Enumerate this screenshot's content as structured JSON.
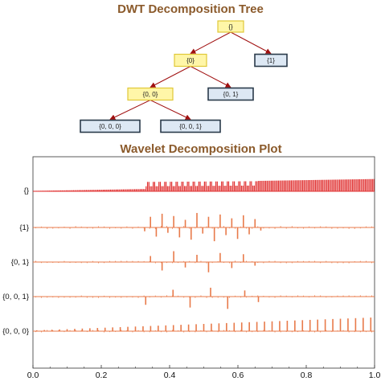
{
  "chart_data": [
    {
      "type": "tree",
      "title": "DWT Decomposition Tree",
      "nodes": [
        {
          "id": "root",
          "label": "{}",
          "leaf": false
        },
        {
          "id": "n0",
          "label": "{0}",
          "leaf": false
        },
        {
          "id": "n1",
          "label": "{1}",
          "leaf": true
        },
        {
          "id": "n00",
          "label": "{0, 0}",
          "leaf": false
        },
        {
          "id": "n01",
          "label": "{0, 1}",
          "leaf": true
        },
        {
          "id": "n000",
          "label": "{0, 0, 0}",
          "leaf": true
        },
        {
          "id": "n001",
          "label": "{0, 0, 1}",
          "leaf": true
        }
      ],
      "edges": [
        [
          "root",
          "n0"
        ],
        [
          "root",
          "n1"
        ],
        [
          "n0",
          "n00"
        ],
        [
          "n0",
          "n01"
        ],
        [
          "n00",
          "n000"
        ],
        [
          "n00",
          "n001"
        ]
      ],
      "colors": {
        "internal_fill": "#fff6a8",
        "internal_stroke": "#e0c838",
        "leaf_fill": "#dde8f4",
        "leaf_stroke": "#2a3a4a",
        "edge": "#a01010"
      }
    },
    {
      "type": "bar",
      "title": "Wavelet Decomposition Plot",
      "xlim": [
        0,
        1
      ],
      "xticks": [
        "0.0",
        "0.2",
        "0.4",
        "0.6",
        "0.8",
        "1.0"
      ],
      "rows": [
        {
          "label": "{}",
          "color": "#e03030",
          "baseline": "bottom",
          "signal": {
            "n": 240,
            "base_amp_start": 0.06,
            "base_amp_end": 0.85,
            "ripple_region": [
              0.33,
              0.66
            ],
            "ripple_amp": 0.35,
            "after_amp": [
              0.72,
              0.85
            ]
          }
        },
        {
          "label": "{1}",
          "color": "#e87a4a",
          "baseline": "center",
          "x": [
            0.327,
            0.344,
            0.361,
            0.378,
            0.395,
            0.412,
            0.429,
            0.446,
            0.463,
            0.48,
            0.497,
            0.514,
            0.531,
            0.548,
            0.565,
            0.582,
            0.599,
            0.616,
            0.633,
            0.65,
            0.667
          ],
          "values": [
            -0.25,
            0.7,
            -0.6,
            0.9,
            -0.35,
            0.75,
            -0.65,
            0.5,
            -0.8,
            0.95,
            -0.4,
            0.7,
            -0.9,
            0.85,
            -0.5,
            0.6,
            -0.75,
            0.8,
            -0.45,
            0.55,
            -0.2
          ],
          "noise_amp": 0.05
        },
        {
          "label": "{0, 1}",
          "color": "#e87a4a",
          "baseline": "center",
          "x": [
            0.344,
            0.378,
            0.412,
            0.446,
            0.48,
            0.514,
            0.548,
            0.582,
            0.616,
            0.65
          ],
          "values": [
            0.5,
            -0.7,
            0.9,
            -0.45,
            0.6,
            -0.85,
            0.75,
            -0.5,
            0.65,
            -0.3
          ],
          "noise_amp": 0.04
        },
        {
          "label": "{0, 0, 1}",
          "color": "#e87a4a",
          "baseline": "center",
          "x": [
            0.33,
            0.41,
            0.46,
            0.52,
            0.57,
            0.62,
            0.66
          ],
          "values": [
            -0.6,
            0.5,
            -0.8,
            0.65,
            -0.9,
            0.45,
            -0.4
          ],
          "noise_amp": 0.04
        },
        {
          "label": "{0, 0, 0}",
          "color": "#e87a4a",
          "baseline": "center",
          "signal": {
            "n": 45,
            "amp_start": 0.05,
            "amp_end": 0.95
          },
          "noise_amp": 0.03
        }
      ]
    }
  ]
}
